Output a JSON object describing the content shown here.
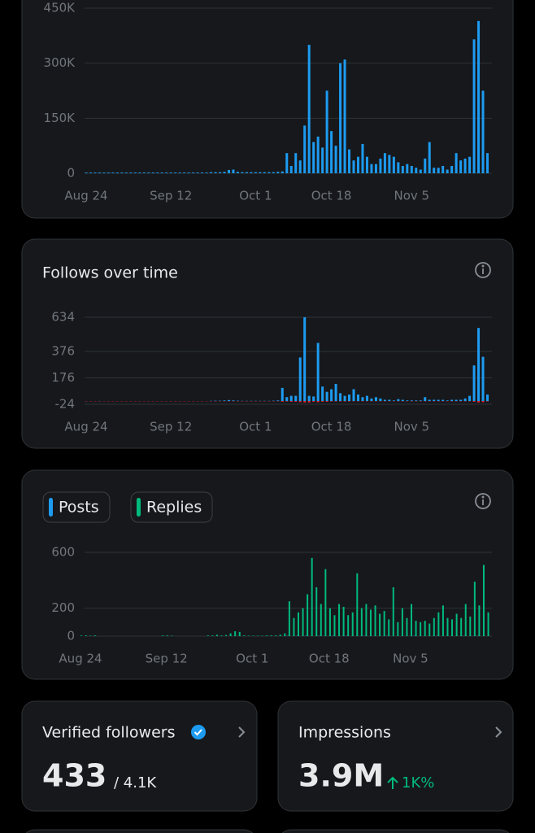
{
  "chart_data": [
    {
      "type": "bar",
      "color": "#1d9bf0",
      "grid": true,
      "categories": [
        "Aug 24",
        null,
        null,
        null,
        null,
        null,
        null,
        null,
        null,
        null,
        null,
        null,
        null,
        null,
        null,
        null,
        null,
        null,
        null,
        "Sep 12",
        null,
        null,
        null,
        null,
        null,
        null,
        null,
        null,
        null,
        null,
        null,
        null,
        null,
        null,
        null,
        null,
        null,
        null,
        "Oct 1",
        null,
        null,
        null,
        null,
        null,
        null,
        null,
        null,
        null,
        null,
        null,
        null,
        null,
        null,
        null,
        null,
        "Oct 18",
        null,
        null,
        null,
        null,
        null,
        null,
        null,
        null,
        null,
        null,
        null,
        null,
        null,
        null,
        null,
        null,
        null,
        "Nov 5",
        null,
        null,
        null,
        null,
        null,
        null,
        null,
        null,
        null,
        null,
        null,
        null,
        null,
        null,
        null,
        null,
        null
      ],
      "values": [
        2,
        2,
        2,
        2,
        2,
        2,
        2,
        2,
        2,
        2,
        2,
        2,
        2,
        2,
        2,
        2,
        2,
        2,
        2,
        2,
        2,
        2,
        2,
        2,
        2,
        2,
        2,
        2,
        3,
        3,
        3,
        4,
        9,
        10,
        4,
        3,
        3,
        3,
        3,
        3,
        3,
        3,
        3,
        4,
        5,
        55,
        20,
        55,
        35,
        130,
        350,
        85,
        100,
        70,
        225,
        115,
        75,
        300,
        310,
        65,
        35,
        45,
        80,
        45,
        25,
        25,
        40,
        55,
        50,
        45,
        30,
        20,
        25,
        20,
        15,
        10,
        40,
        85,
        15,
        15,
        20,
        10,
        20,
        55,
        35,
        40,
        45,
        365,
        415,
        225,
        55
      ],
      "ylim": [
        0,
        450
      ],
      "yticks": [
        0,
        {
          "value": 150,
          "label": "150K"
        },
        {
          "value": 300,
          "label": "300K"
        },
        {
          "value": 450,
          "label": "450K"
        }
      ]
    },
    {
      "type": "bar",
      "title": "Follows over time",
      "grid": true,
      "categories": [
        "Aug 24",
        null,
        null,
        null,
        null,
        null,
        null,
        null,
        null,
        null,
        null,
        null,
        null,
        null,
        null,
        null,
        null,
        null,
        null,
        "Sep 12",
        null,
        null,
        null,
        null,
        null,
        null,
        null,
        null,
        null,
        null,
        null,
        null,
        null,
        null,
        null,
        null,
        null,
        null,
        "Oct 1",
        null,
        null,
        null,
        null,
        null,
        null,
        null,
        null,
        null,
        null,
        null,
        null,
        null,
        null,
        null,
        null,
        "Oct 18",
        null,
        null,
        null,
        null,
        null,
        null,
        null,
        null,
        null,
        null,
        null,
        null,
        null,
        null,
        null,
        null,
        null,
        "Nov 5",
        null,
        null,
        null,
        null,
        null,
        null,
        null,
        null,
        null,
        null,
        null,
        null,
        null,
        null,
        null,
        null,
        null
      ],
      "series": [
        {
          "color": "#1d9bf0",
          "values": [
            0,
            0,
            0,
            1,
            0,
            0,
            0,
            0,
            0,
            0,
            0,
            0,
            0,
            0,
            0,
            0,
            0,
            0,
            0,
            0,
            0,
            0,
            0,
            0,
            0,
            0,
            0,
            0,
            2,
            3,
            3,
            5,
            8,
            5,
            3,
            2,
            2,
            2,
            2,
            2,
            2,
            2,
            3,
            5,
            100,
            30,
            40,
            40,
            330,
            634,
            40,
            35,
            440,
            110,
            70,
            90,
            130,
            60,
            40,
            50,
            90,
            50,
            30,
            40,
            20,
            30,
            20,
            10,
            10,
            5,
            15,
            10,
            5,
            5,
            5,
            5,
            30,
            10,
            10,
            10,
            10,
            5,
            10,
            10,
            10,
            20,
            40,
            270,
            553,
            335,
            50
          ]
        },
        {
          "color": "#f4212e",
          "values": [
            -2,
            -2,
            -2,
            -2,
            -2,
            -2,
            -2,
            -2,
            -2,
            -2,
            -2,
            -2,
            -2,
            -2,
            -2,
            -2,
            -2,
            -2,
            -2,
            -2,
            -2,
            -2,
            -2,
            -2,
            -2,
            -2,
            -2,
            -2,
            -2,
            -2,
            -2,
            -2,
            -2,
            -2,
            -2,
            -2,
            -2,
            -2,
            -2,
            -2,
            -2,
            -2,
            -2,
            -2,
            -5,
            -3,
            -5,
            -5,
            -8,
            -10,
            -10,
            -5,
            -8,
            -5,
            -5,
            -3,
            -3,
            -3,
            -3,
            -3,
            -2,
            -2,
            -2,
            -2,
            -2,
            -2,
            -2,
            -2,
            -2,
            -2,
            -2,
            -2,
            -2,
            -2,
            -2,
            -2,
            -2,
            -2,
            -2,
            -2,
            -2,
            -2,
            -2,
            -2,
            -2,
            -2,
            -2,
            -5,
            -10,
            -8,
            -3
          ]
        }
      ],
      "ylim": [
        -24,
        634
      ],
      "yticks": [
        -24,
        176,
        376,
        634
      ]
    },
    {
      "type": "bar",
      "grid": true,
      "categories": [
        "Aug 24",
        null,
        null,
        null,
        null,
        null,
        null,
        null,
        null,
        null,
        null,
        null,
        null,
        null,
        null,
        null,
        null,
        null,
        null,
        "Sep 12",
        null,
        null,
        null,
        null,
        null,
        null,
        null,
        null,
        null,
        null,
        null,
        null,
        null,
        null,
        null,
        null,
        null,
        null,
        "Oct 1",
        null,
        null,
        null,
        null,
        null,
        null,
        null,
        null,
        null,
        null,
        null,
        null,
        null,
        null,
        null,
        null,
        "Oct 18",
        null,
        null,
        null,
        null,
        null,
        null,
        null,
        null,
        null,
        null,
        null,
        null,
        null,
        null,
        null,
        null,
        null,
        "Nov 5",
        null,
        null,
        null,
        null,
        null,
        null,
        null,
        null,
        null,
        null,
        null,
        null,
        null,
        null,
        null,
        null,
        null
      ],
      "series": [
        {
          "name": "Posts",
          "color": "#1d9bf0",
          "values": [
            0,
            0,
            0,
            0,
            0,
            0,
            0,
            0,
            0,
            0,
            0,
            0,
            0,
            0,
            0,
            0,
            0,
            0,
            0,
            0,
            0,
            0,
            0,
            0,
            0,
            0,
            0,
            0,
            0,
            0,
            0,
            0,
            0,
            0,
            0,
            0,
            0,
            0,
            0,
            0,
            0,
            0,
            0,
            0,
            0,
            0,
            2,
            0,
            2,
            0,
            2,
            0,
            0,
            2,
            0,
            0,
            2,
            0,
            0,
            2,
            0,
            0,
            0,
            2,
            0,
            0,
            0,
            0,
            2,
            0,
            0,
            0,
            0,
            0,
            2,
            0,
            0,
            0,
            0,
            2,
            0,
            0,
            0,
            0,
            0,
            2,
            0,
            0,
            2,
            0,
            0
          ]
        },
        {
          "name": "Replies",
          "color": "#00ba7c",
          "values": [
            5,
            5,
            3,
            5,
            0,
            0,
            0,
            0,
            0,
            0,
            0,
            0,
            0,
            0,
            0,
            0,
            0,
            0,
            5,
            5,
            3,
            0,
            0,
            0,
            0,
            0,
            0,
            0,
            5,
            5,
            10,
            5,
            8,
            20,
            35,
            30,
            5,
            3,
            3,
            3,
            3,
            5,
            5,
            5,
            10,
            20,
            250,
            130,
            170,
            200,
            300,
            560,
            350,
            230,
            480,
            200,
            150,
            230,
            210,
            150,
            170,
            450,
            200,
            230,
            190,
            220,
            160,
            180,
            120,
            350,
            100,
            200,
            130,
            230,
            110,
            100,
            110,
            90,
            130,
            170,
            220,
            130,
            120,
            160,
            130,
            230,
            140,
            390,
            220,
            510,
            170
          ]
        }
      ],
      "ylim": [
        0,
        600
      ],
      "yticks": [
        0,
        200,
        600
      ]
    }
  ],
  "cards": [
    {
      "title": "Verified followers",
      "value": 433,
      "total": "/ 4.1K"
    },
    {
      "title": "Impressions",
      "value": "3.9M",
      "change": "1K%"
    }
  ]
}
